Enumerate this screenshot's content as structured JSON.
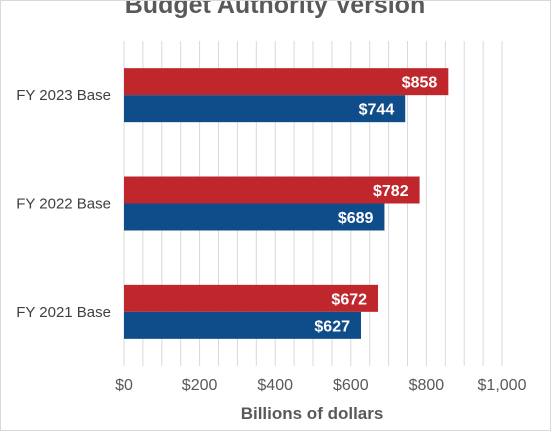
{
  "chart_data": {
    "type": "bar",
    "orientation": "horizontal",
    "title": "Budget Authority Version",
    "xlabel": "Billions of dollars",
    "ylabel": "",
    "categories": [
      "FY 2023 Base",
      "FY 2022 Base",
      "FY 2021 Base"
    ],
    "series": [
      {
        "values": [
          858,
          782,
          672
        ],
        "color": "#c0272d",
        "labels": [
          "$858",
          "$782",
          "$672"
        ]
      },
      {
        "values": [
          744,
          689,
          627
        ],
        "color": "#0f4c8a",
        "labels": [
          "$744",
          "$689",
          "$627"
        ]
      }
    ],
    "xlim": [
      0,
      1000
    ],
    "xticks": [
      0,
      200,
      400,
      600,
      800,
      1000
    ],
    "xtick_labels": [
      "$0",
      "$200",
      "$400",
      "$600",
      "$800",
      "$1,000"
    ],
    "grid": true,
    "legend": "none"
  }
}
